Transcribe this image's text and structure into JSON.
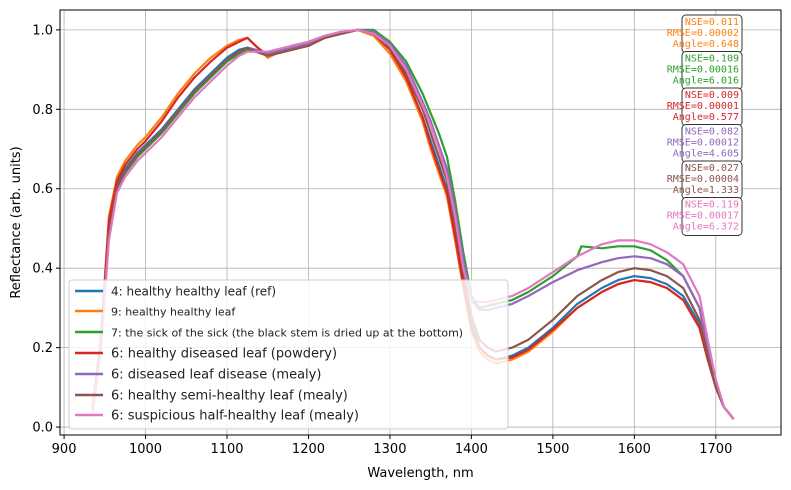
{
  "chart_data": {
    "type": "line",
    "title": "",
    "xlabel": "Wavelength, nm",
    "ylabel": "Reflectance (arb. units)",
    "xlim": [
      895,
      1780
    ],
    "ylim": [
      -0.02,
      1.05
    ],
    "xticks": [
      900,
      1000,
      1100,
      1200,
      1300,
      1400,
      1500,
      1600,
      1700
    ],
    "yticks": [
      0.0,
      0.2,
      0.4,
      0.6,
      0.8,
      1.0
    ],
    "grid": true,
    "legend_position": "lower-left",
    "series": [
      {
        "name": "4: healthy healthy leaf (ref)",
        "color": "#1f77b4",
        "x": [
          935,
          945,
          955,
          965,
          975,
          990,
          1000,
          1020,
          1040,
          1060,
          1080,
          1100,
          1115,
          1125,
          1135,
          1150,
          1160,
          1180,
          1200,
          1220,
          1240,
          1260,
          1280,
          1300,
          1320,
          1340,
          1350,
          1360,
          1370,
          1380,
          1390,
          1400,
          1410,
          1420,
          1430,
          1450,
          1470,
          1500,
          1530,
          1560,
          1580,
          1600,
          1620,
          1640,
          1660,
          1680,
          1690,
          1700,
          1710,
          1722
        ],
        "y": [
          0.04,
          0.2,
          0.5,
          0.61,
          0.65,
          0.69,
          0.71,
          0.75,
          0.8,
          0.85,
          0.89,
          0.93,
          0.95,
          0.955,
          0.95,
          0.935,
          0.94,
          0.95,
          0.96,
          0.98,
          0.99,
          1.0,
          0.99,
          0.95,
          0.88,
          0.78,
          0.72,
          0.66,
          0.6,
          0.5,
          0.38,
          0.27,
          0.2,
          0.18,
          0.17,
          0.18,
          0.2,
          0.25,
          0.31,
          0.35,
          0.37,
          0.38,
          0.375,
          0.36,
          0.33,
          0.26,
          0.18,
          0.1,
          0.05,
          0.02
        ]
      },
      {
        "name": "9: healthy healthy leaf",
        "color": "#ff7f0e",
        "x": [
          935,
          945,
          955,
          965,
          975,
          990,
          1000,
          1020,
          1040,
          1060,
          1080,
          1100,
          1115,
          1125,
          1135,
          1150,
          1160,
          1180,
          1200,
          1220,
          1240,
          1260,
          1280,
          1300,
          1320,
          1340,
          1350,
          1360,
          1370,
          1380,
          1390,
          1400,
          1410,
          1420,
          1430,
          1450,
          1470,
          1500,
          1530,
          1560,
          1580,
          1600,
          1620,
          1640,
          1660,
          1680,
          1690,
          1700,
          1710,
          1722
        ],
        "y": [
          0.05,
          0.22,
          0.53,
          0.63,
          0.67,
          0.71,
          0.73,
          0.78,
          0.84,
          0.89,
          0.93,
          0.96,
          0.975,
          0.98,
          0.96,
          0.93,
          0.94,
          0.95,
          0.96,
          0.98,
          0.99,
          1.0,
          0.985,
          0.94,
          0.87,
          0.77,
          0.7,
          0.64,
          0.58,
          0.47,
          0.35,
          0.24,
          0.19,
          0.17,
          0.16,
          0.17,
          0.19,
          0.24,
          0.3,
          0.34,
          0.36,
          0.37,
          0.365,
          0.35,
          0.32,
          0.25,
          0.17,
          0.1,
          0.05,
          0.02
        ]
      },
      {
        "name": "7: the sick of the sick (the black stem is dried up at the bottom)",
        "color": "#2ca02c",
        "x": [
          935,
          945,
          955,
          965,
          975,
          990,
          1000,
          1020,
          1040,
          1060,
          1080,
          1100,
          1115,
          1125,
          1135,
          1150,
          1160,
          1180,
          1200,
          1220,
          1240,
          1260,
          1280,
          1300,
          1320,
          1340,
          1350,
          1360,
          1370,
          1380,
          1390,
          1400,
          1410,
          1420,
          1430,
          1450,
          1470,
          1500,
          1530,
          1535,
          1560,
          1580,
          1600,
          1620,
          1640,
          1660,
          1680,
          1690,
          1700,
          1710,
          1722
        ],
        "y": [
          0.04,
          0.2,
          0.48,
          0.6,
          0.64,
          0.68,
          0.7,
          0.74,
          0.79,
          0.84,
          0.88,
          0.92,
          0.94,
          0.95,
          0.945,
          0.94,
          0.945,
          0.96,
          0.97,
          0.985,
          0.995,
          1.0,
          1.0,
          0.97,
          0.92,
          0.84,
          0.79,
          0.74,
          0.68,
          0.57,
          0.44,
          0.33,
          0.3,
          0.305,
          0.31,
          0.32,
          0.34,
          0.38,
          0.43,
          0.455,
          0.45,
          0.455,
          0.455,
          0.445,
          0.42,
          0.38,
          0.3,
          0.2,
          0.11,
          0.05,
          0.02
        ]
      },
      {
        "name": "6: healthy diseased leaf (powdery)",
        "color": "#d62728",
        "x": [
          935,
          945,
          955,
          965,
          975,
          990,
          1000,
          1020,
          1040,
          1060,
          1080,
          1100,
          1115,
          1125,
          1135,
          1150,
          1160,
          1180,
          1200,
          1220,
          1240,
          1260,
          1280,
          1300,
          1320,
          1340,
          1350,
          1360,
          1370,
          1380,
          1390,
          1400,
          1410,
          1420,
          1430,
          1450,
          1470,
          1500,
          1530,
          1560,
          1580,
          1600,
          1620,
          1640,
          1660,
          1680,
          1690,
          1700,
          1710,
          1722
        ],
        "y": [
          0.05,
          0.21,
          0.52,
          0.62,
          0.66,
          0.7,
          0.72,
          0.77,
          0.83,
          0.88,
          0.92,
          0.955,
          0.97,
          0.98,
          0.96,
          0.935,
          0.94,
          0.95,
          0.96,
          0.98,
          0.99,
          1.0,
          0.99,
          0.95,
          0.88,
          0.78,
          0.71,
          0.65,
          0.59,
          0.48,
          0.36,
          0.25,
          0.2,
          0.18,
          0.17,
          0.175,
          0.195,
          0.245,
          0.3,
          0.34,
          0.36,
          0.37,
          0.365,
          0.35,
          0.32,
          0.25,
          0.17,
          0.1,
          0.05,
          0.02
        ]
      },
      {
        "name": "6: diseased leaf disease (mealy)",
        "color": "#9467bd",
        "x": [
          935,
          945,
          955,
          965,
          975,
          990,
          1000,
          1020,
          1040,
          1060,
          1080,
          1100,
          1115,
          1125,
          1135,
          1150,
          1160,
          1180,
          1200,
          1220,
          1240,
          1260,
          1280,
          1300,
          1320,
          1340,
          1350,
          1360,
          1370,
          1380,
          1390,
          1400,
          1410,
          1420,
          1430,
          1450,
          1470,
          1500,
          1530,
          1560,
          1580,
          1600,
          1620,
          1640,
          1660,
          1680,
          1690,
          1700,
          1710,
          1722
        ],
        "y": [
          0.04,
          0.2,
          0.49,
          0.6,
          0.645,
          0.685,
          0.705,
          0.745,
          0.795,
          0.845,
          0.885,
          0.925,
          0.945,
          0.955,
          0.95,
          0.94,
          0.945,
          0.955,
          0.965,
          0.98,
          0.99,
          1.0,
          0.995,
          0.965,
          0.91,
          0.82,
          0.77,
          0.71,
          0.65,
          0.55,
          0.42,
          0.32,
          0.295,
          0.295,
          0.3,
          0.31,
          0.33,
          0.365,
          0.395,
          0.415,
          0.425,
          0.43,
          0.425,
          0.41,
          0.38,
          0.3,
          0.2,
          0.11,
          0.05,
          0.02
        ]
      },
      {
        "name": "6: healthy semi-healthy leaf (mealy)",
        "color": "#8c564b",
        "x": [
          935,
          945,
          955,
          965,
          975,
          990,
          1000,
          1020,
          1040,
          1060,
          1080,
          1100,
          1115,
          1125,
          1135,
          1150,
          1160,
          1180,
          1200,
          1220,
          1240,
          1260,
          1280,
          1300,
          1320,
          1340,
          1350,
          1360,
          1370,
          1380,
          1390,
          1400,
          1410,
          1420,
          1430,
          1450,
          1470,
          1500,
          1530,
          1560,
          1580,
          1600,
          1620,
          1640,
          1660,
          1680,
          1690,
          1700,
          1710,
          1722
        ],
        "y": [
          0.04,
          0.2,
          0.49,
          0.605,
          0.645,
          0.685,
          0.705,
          0.745,
          0.795,
          0.845,
          0.885,
          0.925,
          0.945,
          0.955,
          0.945,
          0.935,
          0.94,
          0.95,
          0.96,
          0.98,
          0.99,
          1.0,
          0.99,
          0.955,
          0.89,
          0.8,
          0.74,
          0.68,
          0.62,
          0.51,
          0.39,
          0.28,
          0.22,
          0.2,
          0.19,
          0.2,
          0.22,
          0.27,
          0.33,
          0.37,
          0.39,
          0.4,
          0.395,
          0.38,
          0.35,
          0.27,
          0.18,
          0.1,
          0.05,
          0.02
        ]
      },
      {
        "name": "6: suspicious half-healthy leaf (mealy)",
        "color": "#e377c2",
        "x": [
          935,
          945,
          955,
          965,
          975,
          990,
          1000,
          1020,
          1040,
          1060,
          1080,
          1100,
          1115,
          1125,
          1135,
          1150,
          1160,
          1180,
          1200,
          1220,
          1240,
          1260,
          1280,
          1300,
          1320,
          1340,
          1350,
          1360,
          1370,
          1380,
          1390,
          1400,
          1410,
          1420,
          1430,
          1450,
          1470,
          1500,
          1530,
          1560,
          1580,
          1600,
          1620,
          1640,
          1660,
          1680,
          1690,
          1700,
          1710,
          1722
        ],
        "y": [
          0.04,
          0.19,
          0.47,
          0.59,
          0.63,
          0.67,
          0.69,
          0.73,
          0.78,
          0.83,
          0.87,
          0.91,
          0.935,
          0.945,
          0.945,
          0.945,
          0.95,
          0.96,
          0.97,
          0.985,
          0.995,
          1.0,
          0.99,
          0.96,
          0.9,
          0.81,
          0.76,
          0.7,
          0.63,
          0.53,
          0.4,
          0.32,
          0.315,
          0.315,
          0.32,
          0.33,
          0.35,
          0.39,
          0.43,
          0.46,
          0.47,
          0.47,
          0.46,
          0.44,
          0.41,
          0.33,
          0.22,
          0.12,
          0.05,
          0.02
        ]
      }
    ],
    "annotations": [
      {
        "color": "#ff7f0e",
        "lines": [
          "NSE=0.011",
          "RMSE=0.00002",
          "Angle=0.648"
        ]
      },
      {
        "color": "#2ca02c",
        "lines": [
          "NSE=0.109",
          "RMSE=0.00016",
          "Angle=6.016"
        ]
      },
      {
        "color": "#d62728",
        "lines": [
          "NSE=0.009",
          "RMSE=0.00001",
          "Angle=0.577"
        ]
      },
      {
        "color": "#9467bd",
        "lines": [
          "NSE=0.082",
          "RMSE=0.00012",
          "Angle=4.605"
        ]
      },
      {
        "color": "#8c564b",
        "lines": [
          "NSE=0.027",
          "RMSE=0.00004",
          "Angle=1.333"
        ]
      },
      {
        "color": "#e377c2",
        "lines": [
          "NSE=0.119",
          "RMSE=0.00017",
          "Angle=6.372"
        ]
      }
    ]
  }
}
